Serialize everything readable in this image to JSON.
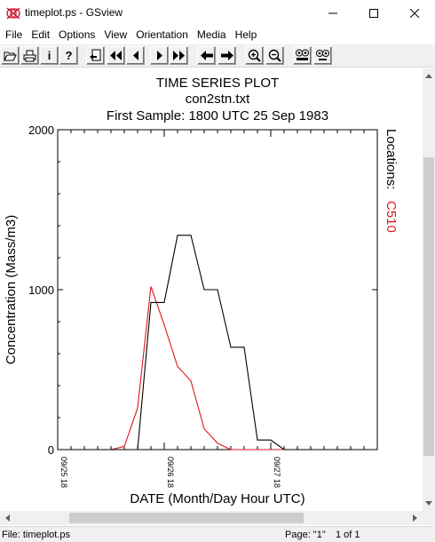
{
  "window": {
    "title": "timeplot.ps - GSview",
    "icon": "gsview-logo-icon"
  },
  "menu": [
    "File",
    "Edit",
    "Options",
    "View",
    "Orientation",
    "Media",
    "Help"
  ],
  "toolbar": {
    "buttons": [
      "open-icon",
      "print-icon",
      "info-icon",
      "help-icon",
      "goto-page-icon",
      "first-page-icon",
      "prev-page-icon",
      "next-page-icon",
      "last-page-icon",
      "back-icon",
      "forward-icon",
      "zoom-in-icon",
      "zoom-out-icon",
      "text-search-icon",
      "text-search-next-icon"
    ],
    "info_label": "i",
    "help_label": "?"
  },
  "plot": {
    "title_lines": [
      "TIME SERIES PLOT",
      "con2stn.txt",
      "First Sample: 1800 UTC 25 Sep 1983"
    ],
    "ylabel": "Concentration (Mass/m3)",
    "xlabel": "DATE (Month/Day Hour UTC)",
    "legend_label": "Locations:",
    "legend_series": "C510",
    "legend_series_color": "#e0141e",
    "primary_line_color": "#000000"
  },
  "chart_data": {
    "type": "line",
    "title": "TIME SERIES PLOT",
    "subtitle": [
      "con2stn.txt",
      "First Sample: 1800 UTC 25 Sep 1983"
    ],
    "xlabel": "DATE (Month/Day Hour UTC)",
    "ylabel": "Concentration (Mass/m3)",
    "ylim": [
      0,
      2000
    ],
    "xlim_hours": [
      0,
      72
    ],
    "x_ticks": [
      {
        "label": "09/25 18",
        "hour": 0
      },
      {
        "label": "09/26 18",
        "hour": 24
      },
      {
        "label": "09/27 18",
        "hour": 48
      }
    ],
    "y_ticks": [
      0,
      1000,
      2000
    ],
    "legend_title": "Locations:",
    "series": [
      {
        "name": "C510",
        "color": "#e0141e",
        "hours": [
          0,
          3,
          6,
          9,
          12,
          15,
          18,
          21,
          24,
          27,
          30,
          33,
          36,
          39,
          42,
          45,
          48,
          51,
          54,
          57,
          60,
          63,
          66,
          69,
          72
        ],
        "values": [
          0,
          0,
          0,
          0,
          0,
          20,
          260,
          1020,
          780,
          520,
          430,
          130,
          40,
          0,
          0,
          0,
          0,
          0,
          0,
          0,
          0,
          0,
          0,
          0,
          0
        ]
      },
      {
        "color": "#000000",
        "step": true,
        "hours": [
          0,
          18,
          21,
          24,
          27,
          30,
          33,
          36,
          39,
          42,
          45,
          48,
          51,
          54,
          57,
          60,
          72
        ],
        "values": [
          0,
          0,
          920,
          920,
          1340,
          1340,
          1000,
          1000,
          640,
          640,
          60,
          60,
          0,
          0,
          0,
          0,
          0
        ],
        "ramp": true
      }
    ]
  },
  "status": {
    "file": "File: timeplot.ps",
    "page": "Page: \"1\"",
    "count": "1 of 1"
  }
}
